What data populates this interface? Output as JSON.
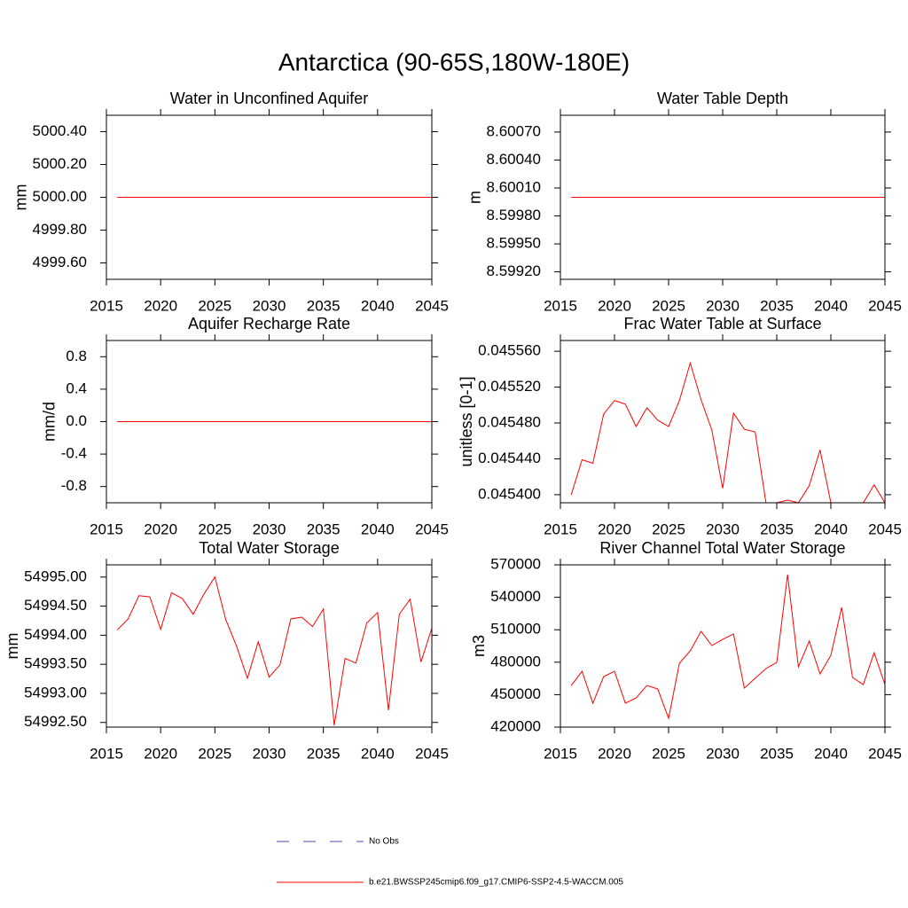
{
  "title": "Antarctica (90-65S,180W-180E)",
  "legend": [
    {
      "name": "No Obs",
      "color": "#4b4bb4",
      "dashed": true
    },
    {
      "name": "b.e21.BWSSP245cmip6.f09_g17.CMIP6-SSP2-4.5-WACCM.005",
      "color": "#ff0000",
      "dashed": false
    }
  ],
  "chart_data": [
    {
      "type": "line",
      "title": "Water in Unconfined Aquifer",
      "y_label": "mm",
      "x": [
        2016,
        2017,
        2018,
        2019,
        2020,
        2021,
        2022,
        2023,
        2024,
        2025,
        2026,
        2027,
        2028,
        2029,
        2030,
        2031,
        2032,
        2033,
        2034,
        2035,
        2036,
        2037,
        2038,
        2039,
        2040,
        2041,
        2042,
        2043,
        2044,
        2045
      ],
      "xlim": [
        2015,
        2045
      ],
      "xticks": [
        2015,
        2020,
        2025,
        2030,
        2035,
        2040,
        2045
      ],
      "ylim": [
        4999.5,
        5000.5
      ],
      "yticks": [
        {
          "value": 4999.6,
          "label": "4999.60"
        },
        {
          "value": 4999.8,
          "label": "4999.80"
        },
        {
          "value": 5000.0,
          "label": "5000.00"
        },
        {
          "value": 5000.2,
          "label": "5000.20"
        },
        {
          "value": 5000.4,
          "label": "5000.40"
        }
      ],
      "series": [
        {
          "color": "#ff0000",
          "values": [
            5000,
            5000,
            5000,
            5000,
            5000,
            5000,
            5000,
            5000,
            5000,
            5000,
            5000,
            5000,
            5000,
            5000,
            5000,
            5000,
            5000,
            5000,
            5000,
            5000,
            5000,
            5000,
            5000,
            5000,
            5000,
            5000,
            5000,
            5000,
            5000,
            5000
          ]
        }
      ]
    },
    {
      "type": "line",
      "title": "Water Table Depth",
      "y_label": "m",
      "x": [
        2016,
        2017,
        2018,
        2019,
        2020,
        2021,
        2022,
        2023,
        2024,
        2025,
        2026,
        2027,
        2028,
        2029,
        2030,
        2031,
        2032,
        2033,
        2034,
        2035,
        2036,
        2037,
        2038,
        2039,
        2040,
        2041,
        2042,
        2043,
        2044,
        2045
      ],
      "xlim": [
        2015,
        2045
      ],
      "xticks": [
        2015,
        2020,
        2025,
        2030,
        2035,
        2040,
        2045
      ],
      "ylim": [
        8.59912,
        8.60088
      ],
      "yticks": [
        {
          "value": 8.5992,
          "label": "8.59920"
        },
        {
          "value": 8.5995,
          "label": "8.59950"
        },
        {
          "value": 8.5998,
          "label": "8.59980"
        },
        {
          "value": 8.6001,
          "label": "8.60010"
        },
        {
          "value": 8.6004,
          "label": "8.60040"
        },
        {
          "value": 8.6007,
          "label": "8.60070"
        }
      ],
      "series": [
        {
          "color": "#ff0000",
          "values": [
            8.6,
            8.6,
            8.6,
            8.6,
            8.6,
            8.6,
            8.6,
            8.6,
            8.6,
            8.6,
            8.6,
            8.6,
            8.6,
            8.6,
            8.6,
            8.6,
            8.6,
            8.6,
            8.6,
            8.6,
            8.6,
            8.6,
            8.6,
            8.6,
            8.6,
            8.6,
            8.6,
            8.6,
            8.6,
            8.6
          ]
        }
      ]
    },
    {
      "type": "line",
      "title": "Aquifer Recharge Rate",
      "y_label": "mm/d",
      "x": [
        2016,
        2017,
        2018,
        2019,
        2020,
        2021,
        2022,
        2023,
        2024,
        2025,
        2026,
        2027,
        2028,
        2029,
        2030,
        2031,
        2032,
        2033,
        2034,
        2035,
        2036,
        2037,
        2038,
        2039,
        2040,
        2041,
        2042,
        2043,
        2044,
        2045
      ],
      "xlim": [
        2015,
        2045
      ],
      "xticks": [
        2015,
        2020,
        2025,
        2030,
        2035,
        2040,
        2045
      ],
      "ylim": [
        -1,
        1
      ],
      "yticks": [
        -0.8,
        -0.4,
        {
          "value": 0,
          "label": "0.0"
        },
        0.4,
        0.8
      ],
      "series": [
        {
          "color": "#ff0000",
          "values": [
            0,
            0,
            0,
            0,
            0,
            0,
            0,
            0,
            0,
            0,
            0,
            0,
            0,
            0,
            0,
            0,
            0,
            0,
            0,
            0,
            0,
            0,
            0,
            0,
            0,
            0,
            0,
            0,
            0,
            0
          ]
        }
      ]
    },
    {
      "type": "line",
      "title": "Frac Water Table at Surface",
      "y_label": "unitless [0-1]",
      "x": [
        2016,
        2017,
        2018,
        2019,
        2020,
        2021,
        2022,
        2023,
        2024,
        2025,
        2026,
        2027,
        2028,
        2029,
        2030,
        2031,
        2032,
        2033,
        2034,
        2035,
        2036,
        2037,
        2038,
        2039,
        2040,
        2041,
        2042,
        2043,
        2044,
        2045
      ],
      "xlim": [
        2015,
        2045
      ],
      "xticks": [
        2015,
        2020,
        2025,
        2030,
        2035,
        2040,
        2045
      ],
      "ylim": [
        0.045391,
        0.045572
      ],
      "yticks": [
        {
          "value": 0.0454,
          "label": "0.045400"
        },
        {
          "value": 0.04544,
          "label": "0.045440"
        },
        {
          "value": 0.04548,
          "label": "0.045480"
        },
        {
          "value": 0.04552,
          "label": "0.045520"
        },
        {
          "value": 0.04556,
          "label": "0.045560"
        }
      ],
      "series": [
        {
          "color": "#ff0000",
          "values": [
            0.0454,
            0.045439,
            0.045435,
            0.04549,
            0.045505,
            0.045501,
            0.045476,
            0.045497,
            0.045483,
            0.045476,
            0.045505,
            0.045547,
            0.045506,
            0.045472,
            0.045407,
            0.045491,
            0.045473,
            0.04547,
            0.045391,
            0.045391,
            0.045394,
            0.045391,
            0.04541,
            0.04545,
            0.045391,
            0.045391,
            0.045391,
            0.045391,
            0.045411,
            0.045391
          ]
        }
      ]
    },
    {
      "type": "line",
      "title": "Total Water Storage",
      "y_label": "mm",
      "x": [
        2016,
        2017,
        2018,
        2019,
        2020,
        2021,
        2022,
        2023,
        2024,
        2025,
        2026,
        2027,
        2028,
        2029,
        2030,
        2031,
        2032,
        2033,
        2034,
        2035,
        2036,
        2037,
        2038,
        2039,
        2040,
        2041,
        2042,
        2043,
        2044,
        2045
      ],
      "xlim": [
        2015,
        2045
      ],
      "xticks": [
        2015,
        2020,
        2025,
        2030,
        2035,
        2040,
        2045
      ],
      "ylim": [
        54992.42,
        54995.21
      ],
      "yticks": [
        {
          "value": 54992.5,
          "label": "54992.50"
        },
        {
          "value": 54993,
          "label": "54993.00"
        },
        {
          "value": 54993.5,
          "label": "54993.50"
        },
        {
          "value": 54994,
          "label": "54994.00"
        },
        {
          "value": 54994.5,
          "label": "54994.50"
        },
        {
          "value": 54995,
          "label": "54995.00"
        }
      ],
      "series": [
        {
          "color": "#ff0000",
          "values": [
            54994.09,
            54994.28,
            54994.68,
            54994.66,
            54994.1,
            54994.73,
            54994.63,
            54994.36,
            54994.71,
            54995.0,
            54994.27,
            54993.81,
            54993.26,
            54993.89,
            54993.28,
            54993.49,
            54994.28,
            54994.31,
            54994.15,
            54994.45,
            54992.45,
            54993.6,
            54993.52,
            54994.21,
            54994.39,
            54992.71,
            54994.36,
            54994.62,
            54993.54,
            54994.12
          ]
        }
      ]
    },
    {
      "type": "line",
      "title": "River Channel Total Water Storage",
      "y_label": "m3",
      "x": [
        2016,
        2017,
        2018,
        2019,
        2020,
        2021,
        2022,
        2023,
        2024,
        2025,
        2026,
        2027,
        2028,
        2029,
        2030,
        2031,
        2032,
        2033,
        2034,
        2035,
        2036,
        2037,
        2038,
        2039,
        2040,
        2041,
        2042,
        2043,
        2044,
        2045
      ],
      "xlim": [
        2015,
        2045
      ],
      "xticks": [
        2015,
        2020,
        2025,
        2030,
        2035,
        2040,
        2045
      ],
      "ylim": [
        420000,
        570000
      ],
      "yticks": [
        420000,
        450000,
        480000,
        510000,
        540000,
        570000
      ],
      "series": [
        {
          "color": "#ff0000",
          "values": [
            458500,
            471600,
            442100,
            466700,
            471600,
            442100,
            447000,
            458500,
            455200,
            428200,
            479000,
            490500,
            508500,
            495400,
            501100,
            506100,
            456100,
            465100,
            474100,
            479800,
            561000,
            475700,
            499500,
            469200,
            486400,
            530700,
            465900,
            459300,
            488800,
            459300
          ]
        }
      ]
    }
  ]
}
